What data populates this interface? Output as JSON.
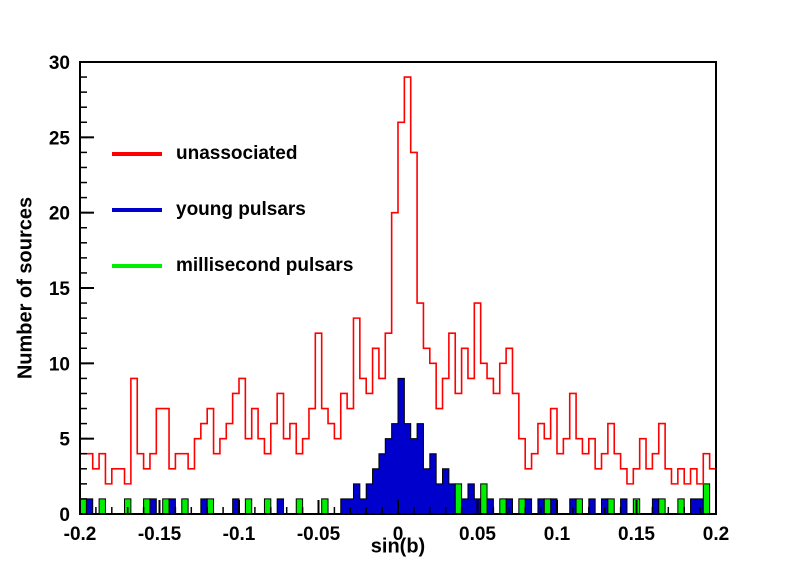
{
  "chart_data": {
    "type": "bar",
    "subtype": "step-histogram",
    "title": "",
    "xlabel": "sin(b)",
    "ylabel": "Number of sources",
    "xlim": [
      -0.2,
      0.2
    ],
    "ylim": [
      0,
      30
    ],
    "x_start": -0.2,
    "bin_width": 0.004,
    "x_ticks": [
      -0.2,
      -0.15,
      -0.1,
      -0.05,
      0,
      0.05,
      0.1,
      0.15,
      0.2
    ],
    "x_tick_labels": [
      "-0.2",
      "-0.15",
      "-0.1",
      "-0.05",
      "0",
      "0.05",
      "0.1",
      "0.15",
      "0.2"
    ],
    "x_minor_step": 0.01,
    "y_ticks": [
      0,
      5,
      10,
      15,
      20,
      25,
      30
    ],
    "y_tick_labels": [
      "0",
      "5",
      "10",
      "15",
      "20",
      "25",
      "30"
    ],
    "y_minor_step": 1,
    "grid": false,
    "legend_position": "top-left",
    "frame_color": "#000000",
    "background_color": "#ffffff",
    "series": [
      {
        "name": "unassociated",
        "style": "step",
        "color": "#ff0000",
        "values": [
          4,
          4,
          3,
          4,
          2,
          3,
          3,
          2,
          9,
          4,
          3,
          4,
          7,
          7,
          3,
          4,
          4,
          3,
          5,
          6,
          7,
          4,
          5,
          6,
          8,
          9,
          5,
          7,
          5,
          4,
          6,
          8,
          5,
          6,
          4,
          5,
          7,
          12,
          7,
          6,
          5,
          8,
          7,
          13,
          9,
          8,
          11,
          9,
          12,
          20,
          26,
          29,
          24,
          14,
          11,
          10,
          7,
          9,
          12,
          8,
          11,
          9,
          14,
          10,
          9,
          8,
          10,
          11,
          8,
          5,
          3,
          4,
          6,
          5,
          7,
          4,
          5,
          8,
          5,
          4,
          5,
          3,
          4,
          6,
          4,
          3,
          2,
          3,
          5,
          3,
          4,
          6,
          3,
          2,
          3,
          2,
          3,
          2,
          4,
          3
        ]
      },
      {
        "name": "young pulsars",
        "style": "filled",
        "color": "#0000cc",
        "values": [
          0,
          1,
          0,
          0,
          0,
          0,
          0,
          0,
          0,
          0,
          0,
          1,
          0,
          0,
          1,
          0,
          0,
          0,
          0,
          1,
          0,
          0,
          0,
          0,
          1,
          0,
          0,
          0,
          0,
          0,
          0,
          1,
          0,
          0,
          0,
          0,
          0,
          0,
          0,
          0,
          0,
          1,
          1,
          2,
          1,
          2,
          3,
          4,
          5,
          6,
          9,
          6,
          5,
          6,
          3,
          4,
          2,
          3,
          2,
          1,
          1,
          2,
          1,
          0,
          1,
          0,
          0,
          1,
          0,
          0,
          1,
          0,
          1,
          0,
          1,
          0,
          0,
          1,
          0,
          0,
          1,
          0,
          1,
          0,
          0,
          1,
          0,
          0,
          0,
          0,
          1,
          0,
          0,
          0,
          0,
          0,
          1,
          1,
          0,
          0
        ]
      },
      {
        "name": "millisecond pulsars",
        "style": "filled",
        "color": "#00ee00",
        "values": [
          1,
          0,
          0,
          1,
          0,
          0,
          0,
          1,
          0,
          0,
          1,
          0,
          0,
          1,
          0,
          0,
          1,
          0,
          0,
          0,
          1,
          0,
          0,
          0,
          0,
          0,
          1,
          0,
          0,
          1,
          0,
          0,
          0,
          0,
          1,
          0,
          0,
          0,
          1,
          0,
          0,
          0,
          0,
          0,
          0,
          0,
          0,
          0,
          0,
          0,
          0,
          0,
          0,
          0,
          0,
          0,
          0,
          0,
          0,
          2,
          0,
          0,
          0,
          2,
          0,
          0,
          1,
          0,
          0,
          1,
          0,
          0,
          0,
          1,
          0,
          0,
          0,
          0,
          1,
          0,
          0,
          0,
          0,
          1,
          0,
          0,
          0,
          1,
          0,
          0,
          0,
          1,
          0,
          0,
          1,
          0,
          0,
          0,
          2,
          0
        ]
      }
    ]
  }
}
